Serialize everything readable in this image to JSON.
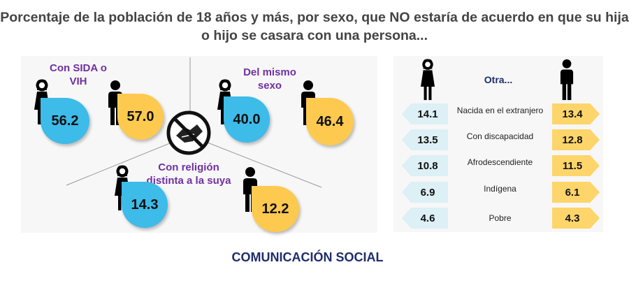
{
  "title": "Porcentaje de la población de 18 años y más, por sexo, que NO estaría de acuerdo en que su hija o hijo se casara con una persona...",
  "colors": {
    "mujer": "#3dbbe9",
    "hombre": "#fdc94f",
    "label": "#7030a0",
    "footer": "#1f2d6b"
  },
  "icons": [
    "woman-icon",
    "man-icon",
    "no-handshake-icon"
  ],
  "categories": [
    {
      "label": "Con SIDA o VIH",
      "mujer": "56.2",
      "hombre": "57.0"
    },
    {
      "label": "Del mismo sexo",
      "mujer": "40.0",
      "hombre": "46.4"
    },
    {
      "label": "Con religión distinta a la suya",
      "mujer": "14.3",
      "hombre": "12.2"
    }
  ],
  "otra": {
    "title": "Otra...",
    "rows": [
      {
        "label": "Nacida en el extranjero",
        "mujer": "14.1",
        "hombre": "13.4"
      },
      {
        "label": "Con discapacidad",
        "mujer": "13.5",
        "hombre": "12.8"
      },
      {
        "label": "Afrodescendiente",
        "mujer": "10.8",
        "hombre": "11.5"
      },
      {
        "label": "Indígena",
        "mujer": "6.9",
        "hombre": "6.1"
      },
      {
        "label": "Pobre",
        "mujer": "4.6",
        "hombre": "4.3"
      }
    ]
  },
  "footer": "COMUNICACIÓN SOCIAL"
}
